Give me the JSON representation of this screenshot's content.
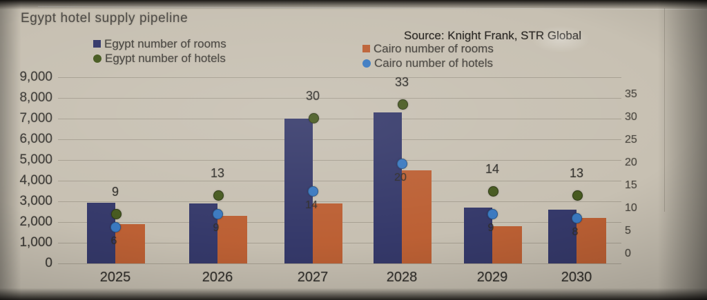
{
  "title": "Egypt hotel supply pipeline",
  "source": "Source: Knight Frank, STR Global",
  "colors": {
    "egypt_rooms": "#35396a",
    "cairo_rooms": "#bc6034",
    "egypt_hotels": "#46591f",
    "cairo_hotels": "#3a79c0",
    "paper": "#c7c0b2"
  },
  "legend": {
    "items": [
      {
        "label": "Egypt number of rooms",
        "marker": "square",
        "color": "#35396a"
      },
      {
        "label": "Egypt number of hotels",
        "marker": "circle",
        "color": "#46591f"
      },
      {
        "label": "Cairo number of rooms",
        "marker": "square",
        "color": "#bc6034"
      },
      {
        "label": "Cairo number of hotels",
        "marker": "circle",
        "color": "#3a79c0"
      }
    ]
  },
  "chart_data": {
    "type": "bar",
    "subtype": "grouped-bars-with-point-series-dual-axis",
    "title": "Egypt hotel supply pipeline",
    "categories": [
      "2025",
      "2026",
      "2027",
      "2028",
      "2029",
      "2030"
    ],
    "series": [
      {
        "name": "Egypt number of rooms",
        "type": "bar",
        "axis": "left",
        "color": "#35396a",
        "values": [
          2950,
          2900,
          7000,
          7300,
          2700,
          2600
        ]
      },
      {
        "name": "Cairo number of rooms",
        "type": "bar",
        "axis": "left",
        "color": "#bc6034",
        "values": [
          1900,
          2300,
          2900,
          4500,
          1800,
          2200
        ]
      },
      {
        "name": "Egypt number of hotels",
        "type": "point",
        "axis": "right",
        "color": "#46591f",
        "values": [
          9,
          13,
          30,
          33,
          14,
          13
        ],
        "data_labels": [
          "9",
          "13",
          "30",
          "33",
          "14",
          "13"
        ]
      },
      {
        "name": "Cairo number of hotels",
        "type": "point",
        "axis": "right",
        "color": "#3a79c0",
        "values": [
          6,
          9,
          14,
          20,
          9,
          8
        ],
        "data_labels": [
          "6",
          "9",
          "14",
          "20",
          "9",
          "8"
        ]
      }
    ],
    "left_axis": {
      "min": 0,
      "max": 9000,
      "step": 1000,
      "tick_labels": [
        "0",
        "1,000",
        "2,000",
        "3,000",
        "4,000",
        "5,000",
        "6,000",
        "7,000",
        "8,000",
        "9,000"
      ]
    },
    "right_axis": {
      "min": 0,
      "max": 35,
      "step": 5,
      "tick_labels": [
        "0",
        "5",
        "10",
        "15",
        "20",
        "25",
        "30",
        "35"
      ]
    },
    "grid": true,
    "legend_position": "top"
  }
}
